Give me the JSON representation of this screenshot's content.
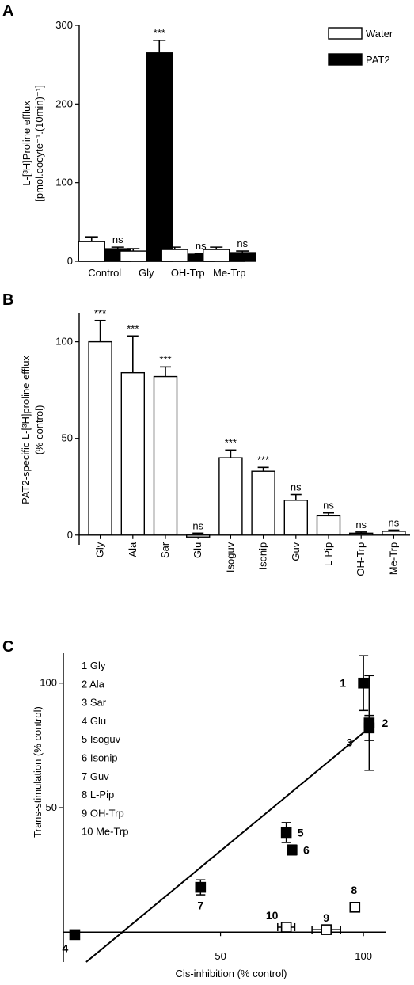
{
  "colors": {
    "ink": "#000000",
    "paper": "#ffffff"
  },
  "chart_data": [
    {
      "panel": "A",
      "type": "bar",
      "ylabel_lines": [
        "L-[³H]Proline efflux",
        "[pmol.oocyte⁻¹.(10min)⁻¹]"
      ],
      "ylim": [
        0,
        300
      ],
      "yticks": [
        "0",
        "100",
        "200",
        "300"
      ],
      "categories": [
        "Control",
        "Gly",
        "OH-Trp",
        "Me-Trp"
      ],
      "legend_position": "top-right",
      "series": [
        {
          "name": "Water",
          "fill": "#ffffff",
          "values": [
            25,
            13,
            15,
            15
          ],
          "errors": [
            6,
            3,
            3,
            3
          ]
        },
        {
          "name": "PAT2",
          "fill": "#000000",
          "values": [
            16,
            265,
            9,
            11
          ],
          "errors": [
            2,
            16,
            1,
            2
          ]
        }
      ],
      "annotations": [
        "ns",
        "***",
        "ns",
        "ns"
      ]
    },
    {
      "panel": "B",
      "type": "bar",
      "ylabel_lines": [
        "PAT2-specific L-[³H]proline efflux",
        "(% control)"
      ],
      "ylim": [
        -5,
        115
      ],
      "yticks": [
        "0",
        "50",
        "100"
      ],
      "categories": [
        "Gly",
        "Ala",
        "Sar",
        "Glu",
        "Isoguv",
        "Isonip",
        "Guv",
        "L-Pip",
        "OH-Trp",
        "Me-Trp"
      ],
      "values": [
        100,
        84,
        82,
        -1,
        40,
        33,
        18,
        10,
        1,
        2
      ],
      "errors": [
        11,
        19,
        5,
        1,
        4,
        2,
        3,
        1.5,
        0.6,
        0.6
      ],
      "annotations": [
        "***",
        "***",
        "***",
        "ns",
        "***",
        "***",
        "ns",
        "ns",
        "ns",
        "ns"
      ]
    },
    {
      "panel": "C",
      "type": "scatter",
      "xlabel": "Cis-inhibition (% control)",
      "ylabel": "Trans-stimulation (% control)",
      "xlim": [
        -5,
        108
      ],
      "ylim": [
        -12,
        112
      ],
      "xticks": [
        "50",
        "100"
      ],
      "yticks": [
        "50",
        "100"
      ],
      "key": [
        "1 Gly",
        "2 Ala",
        "3 Sar",
        "4 Glu",
        "5 Isoguv",
        "6 Isonip",
        "7 Guv",
        "8 L-Pip",
        "9 OH-Trp",
        "10 Me-Trp"
      ],
      "points": [
        {
          "label": "1",
          "x": 100,
          "y": 100,
          "xerr": 1.5,
          "yerr": 11,
          "filled": true
        },
        {
          "label": "2",
          "x": 102,
          "y": 84,
          "xerr": 1,
          "yerr": 19,
          "filled": true
        },
        {
          "label": "3",
          "x": 102,
          "y": 82,
          "xerr": 1,
          "yerr": 5,
          "filled": true
        },
        {
          "label": "4",
          "x": -1,
          "y": -1,
          "xerr": 1,
          "yerr": 1,
          "filled": true
        },
        {
          "label": "5",
          "x": 73,
          "y": 40,
          "xerr": 1.5,
          "yerr": 4,
          "filled": true
        },
        {
          "label": "6",
          "x": 75,
          "y": 33,
          "xerr": 1.5,
          "yerr": 2,
          "filled": true
        },
        {
          "label": "7",
          "x": 43,
          "y": 18,
          "xerr": 1,
          "yerr": 3,
          "filled": true
        },
        {
          "label": "8",
          "x": 97,
          "y": 10,
          "xerr": 1.2,
          "yerr": 1.5,
          "filled": false
        },
        {
          "label": "9",
          "x": 87,
          "y": 1,
          "xerr": 5,
          "yerr": 0.6,
          "filled": false
        },
        {
          "label": "10",
          "x": 73,
          "y": 2,
          "xerr": 3,
          "yerr": 0.6,
          "filled": false
        }
      ],
      "fit_line": [
        [
          3,
          -12
        ],
        [
          102,
          82
        ]
      ]
    }
  ]
}
